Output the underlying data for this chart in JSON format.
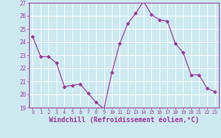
{
  "x": [
    0,
    1,
    2,
    3,
    4,
    5,
    6,
    7,
    8,
    9,
    10,
    11,
    12,
    13,
    14,
    15,
    16,
    17,
    18,
    19,
    20,
    21,
    22,
    23
  ],
  "y": [
    24.4,
    22.9,
    22.9,
    22.4,
    20.6,
    20.7,
    20.8,
    20.1,
    19.4,
    18.9,
    21.7,
    23.9,
    25.4,
    26.2,
    27.1,
    26.1,
    25.7,
    25.6,
    23.9,
    23.2,
    21.5,
    21.5,
    20.5,
    20.2
  ],
  "line_color": "#993399",
  "marker": "D",
  "marker_size": 2.5,
  "linewidth": 0.9,
  "xlabel": "Windchill (Refroidissement éolien,°C)",
  "xlabel_fontsize": 7,
  "xtick_labels": [
    "0",
    "1",
    "2",
    "3",
    "4",
    "5",
    "6",
    "7",
    "8",
    "9",
    "10",
    "11",
    "12",
    "13",
    "14",
    "15",
    "16",
    "17",
    "18",
    "19",
    "20",
    "21",
    "22",
    "23"
  ],
  "ylim": [
    19,
    27
  ],
  "yticks": [
    19,
    20,
    21,
    22,
    23,
    24,
    25,
    26,
    27
  ],
  "background_color": "#cce9f0",
  "grid_color": "#b0d8e0",
  "tick_color": "#993399",
  "label_color": "#993399",
  "spine_color": "#993399"
}
